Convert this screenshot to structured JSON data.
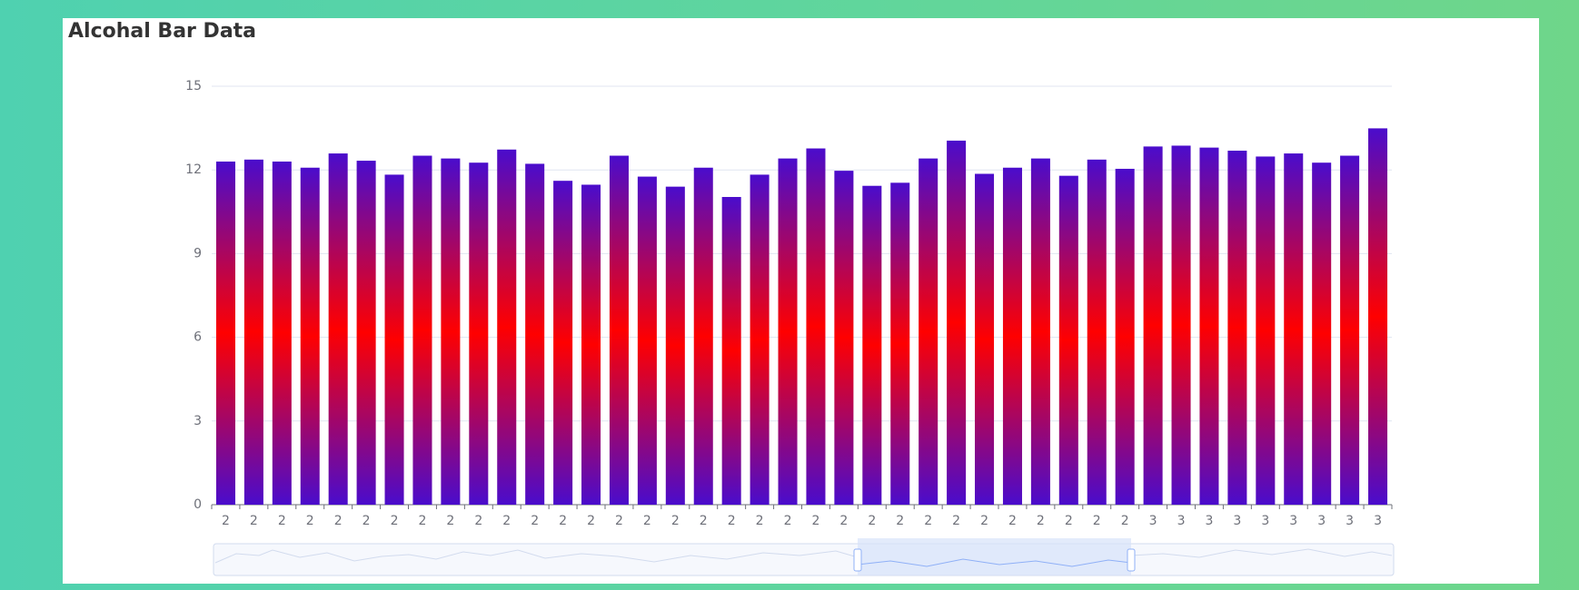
{
  "chart_data": {
    "type": "bar",
    "title": "Alcohal Bar Data",
    "categories": [
      "2",
      "2",
      "2",
      "2",
      "2",
      "2",
      "2",
      "2",
      "2",
      "2",
      "2",
      "2",
      "2",
      "2",
      "2",
      "2",
      "2",
      "2",
      "2",
      "2",
      "2",
      "2",
      "2",
      "2",
      "2",
      "2",
      "2",
      "2",
      "2",
      "2",
      "2",
      "2",
      "2",
      "3",
      "3",
      "3",
      "3",
      "3",
      "3",
      "3",
      "3",
      "3"
    ],
    "values": [
      12.3,
      12.37,
      12.3,
      12.08,
      12.59,
      12.33,
      11.83,
      12.51,
      12.41,
      12.26,
      12.73,
      12.22,
      11.61,
      11.47,
      12.51,
      11.76,
      11.4,
      12.08,
      11.03,
      11.83,
      12.41,
      12.77,
      11.97,
      11.43,
      11.54,
      12.41,
      13.05,
      11.86,
      12.08,
      12.41,
      11.79,
      12.37,
      12.04,
      12.84,
      12.87,
      12.8,
      12.69,
      12.48,
      12.59,
      12.26,
      12.51,
      13.49
    ],
    "colors": [
      "#4a0ccc",
      "#ff0000",
      "#4a0ccc"
    ],
    "ylim": [
      0,
      15
    ],
    "yticks": [
      0,
      3,
      6,
      9,
      12,
      15
    ],
    "grid": true
  }
}
